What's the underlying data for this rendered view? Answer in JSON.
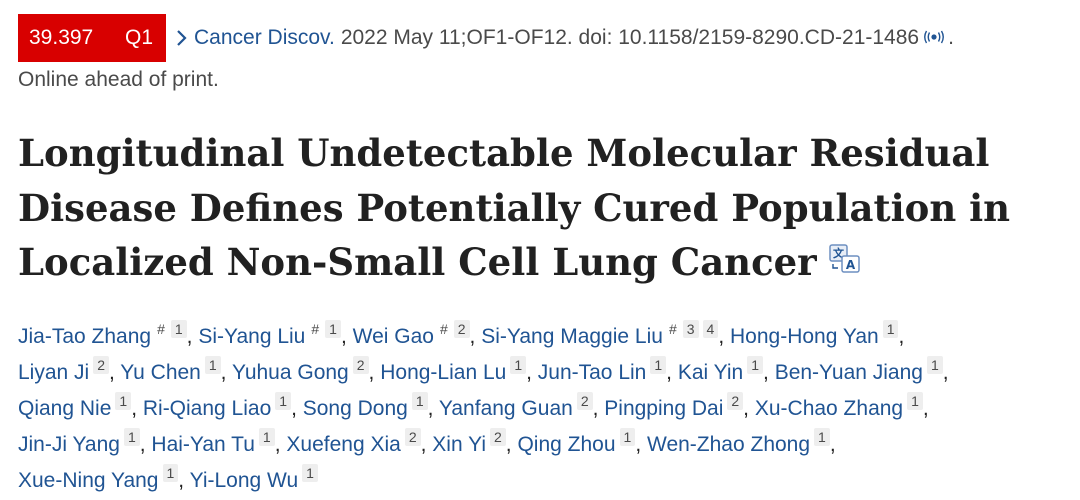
{
  "citation": {
    "impact_factor": "39.397",
    "quartile": "Q1",
    "badge_color": "#d80000",
    "journal": "Cancer Discov.",
    "details": "2022 May 11;OF1-OF12. doi: 10.1158/2159-8290.CD-21-1486",
    "trailing": ".",
    "status": "Online ahead of print.",
    "link_color": "#205493"
  },
  "article": {
    "title": "Longitudinal Undetectable Molecular Residual Disease Defines Potentially Cured Population in Localized Non-Small Cell Lung Cancer"
  },
  "authors": [
    {
      "name": "Jia-Tao Zhang",
      "marks": [
        "#",
        "1"
      ]
    },
    {
      "name": "Si-Yang Liu",
      "marks": [
        "#",
        "1"
      ]
    },
    {
      "name": "Wei Gao",
      "marks": [
        "#",
        "2"
      ]
    },
    {
      "name": "Si-Yang Maggie Liu",
      "marks": [
        "#",
        "3",
        "4"
      ]
    },
    {
      "name": "Hong-Hong Yan",
      "marks": [
        "1"
      ]
    },
    {
      "name": "Liyan Ji",
      "marks": [
        "2"
      ]
    },
    {
      "name": "Yu Chen",
      "marks": [
        "1"
      ]
    },
    {
      "name": "Yuhua Gong",
      "marks": [
        "2"
      ]
    },
    {
      "name": "Hong-Lian Lu",
      "marks": [
        "1"
      ]
    },
    {
      "name": "Jun-Tao Lin",
      "marks": [
        "1"
      ]
    },
    {
      "name": "Kai Yin",
      "marks": [
        "1"
      ]
    },
    {
      "name": "Ben-Yuan Jiang",
      "marks": [
        "1"
      ]
    },
    {
      "name": "Qiang Nie",
      "marks": [
        "1"
      ]
    },
    {
      "name": "Ri-Qiang Liao",
      "marks": [
        "1"
      ]
    },
    {
      "name": "Song Dong",
      "marks": [
        "1"
      ]
    },
    {
      "name": "Yanfang Guan",
      "marks": [
        "2"
      ]
    },
    {
      "name": "Pingping Dai",
      "marks": [
        "2"
      ]
    },
    {
      "name": "Xu-Chao Zhang",
      "marks": [
        "1"
      ]
    },
    {
      "name": "Jin-Ji Yang",
      "marks": [
        "1"
      ]
    },
    {
      "name": "Hai-Yan Tu",
      "marks": [
        "1"
      ]
    },
    {
      "name": "Xuefeng Xia",
      "marks": [
        "2"
      ]
    },
    {
      "name": "Xin Yi",
      "marks": [
        "2"
      ]
    },
    {
      "name": "Qing Zhou",
      "marks": [
        "1"
      ]
    },
    {
      "name": "Wen-Zhao Zhong",
      "marks": [
        "1"
      ]
    },
    {
      "name": "Xue-Ning Yang",
      "marks": [
        "1"
      ]
    },
    {
      "name": "Yi-Long Wu",
      "marks": [
        "1"
      ]
    }
  ],
  "author_lines": [
    [
      0,
      1,
      2,
      3,
      4
    ],
    [
      5,
      6,
      7,
      8,
      9,
      10,
      11
    ],
    [
      12,
      13,
      14,
      15,
      16,
      17
    ],
    [
      18,
      19,
      20,
      21,
      22,
      23
    ],
    [
      24,
      25
    ]
  ],
  "icons": {
    "chevron": "chevron-right-icon",
    "wave": "broadcast-icon",
    "translate": "translate-icon"
  }
}
